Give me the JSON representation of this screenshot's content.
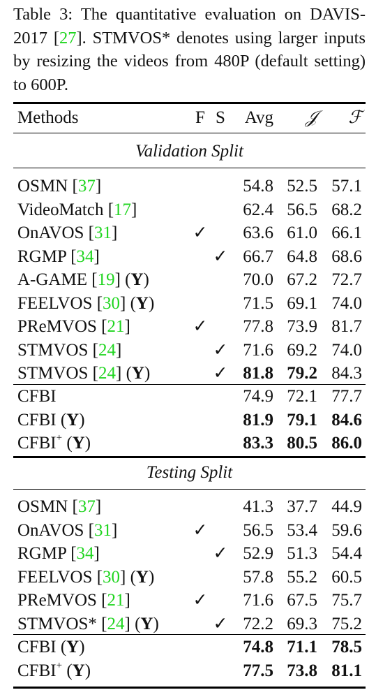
{
  "caption": {
    "lead": "Table 3: The quantitative evaluation on DAVIS-2017 [",
    "cite": "27",
    "tail": "]. STMVOS* denotes using larger inputs by resizing the videos from 480P (default setting) to 600P."
  },
  "header": {
    "methods": "Methods",
    "f": "F",
    "s": "S",
    "avg": "Avg",
    "j": "𝒥",
    "ff": "ℱ"
  },
  "validation_title": "Validation Split",
  "testing_title": "Testing Split",
  "checkmark": "✓",
  "validation_rows": [
    {
      "name": "OSMN",
      "cite": "37",
      "y": "",
      "f": "",
      "s": "",
      "avg": "54.8",
      "j": "52.5",
      "ff": "57.1"
    },
    {
      "name": "VideoMatch",
      "cite": "17",
      "y": "",
      "f": "",
      "s": "",
      "avg": "62.4",
      "j": "56.5",
      "ff": "68.2"
    },
    {
      "name": "OnAVOS",
      "cite": "31",
      "y": "",
      "f": "✓",
      "s": "",
      "avg": "63.6",
      "j": "61.0",
      "ff": "66.1"
    },
    {
      "name": "RGMP",
      "cite": "34",
      "y": "",
      "f": "",
      "s": "✓",
      "avg": "66.7",
      "j": "64.8",
      "ff": "68.6"
    },
    {
      "name": "A-GAME",
      "cite": "19",
      "y": "Y",
      "f": "",
      "s": "",
      "avg": "70.0",
      "j": "67.2",
      "ff": "72.7"
    },
    {
      "name": "FEELVOS",
      "cite": "30",
      "y": "Y",
      "f": "",
      "s": "",
      "avg": "71.5",
      "j": "69.1",
      "ff": "74.0"
    },
    {
      "name": "PReMVOS",
      "cite": "21",
      "y": "",
      "f": "✓",
      "s": "",
      "avg": "77.8",
      "j": "73.9",
      "ff": "81.7"
    },
    {
      "name": "STMVOS",
      "cite": "24",
      "y": "",
      "f": "",
      "s": "✓",
      "avg": "71.6",
      "j": "69.2",
      "ff": "74.0"
    },
    {
      "name": "STMVOS",
      "cite": "24",
      "y": "Y",
      "f": "",
      "s": "✓",
      "avg": "81.8",
      "j": "79.2",
      "ff": "84.3",
      "bold": [
        "avg",
        "j"
      ]
    }
  ],
  "validation_ours": [
    {
      "name": "CFBI",
      "sup": "",
      "y": "",
      "avg": "74.9",
      "j": "72.1",
      "ff": "77.7",
      "bold": []
    },
    {
      "name": "CFBI",
      "sup": "",
      "y": "Y",
      "avg": "81.9",
      "j": "79.1",
      "ff": "84.6",
      "bold": [
        "avg",
        "j",
        "ff"
      ]
    },
    {
      "name": "CFBI",
      "sup": "+",
      "y": "Y",
      "avg": "83.3",
      "j": "80.5",
      "ff": "86.0",
      "bold": [
        "avg",
        "j",
        "ff"
      ]
    }
  ],
  "testing_rows": [
    {
      "name": "OSMN",
      "cite": "37",
      "y": "",
      "f": "",
      "s": "",
      "avg": "41.3",
      "j": "37.7",
      "ff": "44.9"
    },
    {
      "name": "OnAVOS",
      "cite": "31",
      "y": "",
      "f": "✓",
      "s": "",
      "avg": "56.5",
      "j": "53.4",
      "ff": "59.6"
    },
    {
      "name": "RGMP",
      "cite": "34",
      "y": "",
      "f": "",
      "s": "✓",
      "avg": "52.9",
      "j": "51.3",
      "ff": "54.4"
    },
    {
      "name": "FEELVOS",
      "cite": "30",
      "y": "Y",
      "f": "",
      "s": "",
      "avg": "57.8",
      "j": "55.2",
      "ff": "60.5"
    },
    {
      "name": "PReMVOS",
      "cite": "21",
      "y": "",
      "f": "✓",
      "s": "",
      "avg": "71.6",
      "j": "67.5",
      "ff": "75.7"
    },
    {
      "name": "STMVOS*",
      "cite": "24",
      "y": "Y",
      "f": "",
      "s": "✓",
      "avg": "72.2",
      "j": "69.3",
      "ff": "75.2"
    }
  ],
  "testing_ours": [
    {
      "name": "CFBI",
      "sup": "",
      "y": "Y",
      "avg": "74.8",
      "j": "71.1",
      "ff": "78.5",
      "bold": [
        "avg",
        "j",
        "ff"
      ]
    },
    {
      "name": "CFBI",
      "sup": "+",
      "y": "Y",
      "avg": "77.5",
      "j": "73.8",
      "ff": "81.1",
      "bold": [
        "avg",
        "j",
        "ff"
      ]
    }
  ],
  "colors": {
    "citation": "#1fd51f",
    "text": "#111111"
  }
}
